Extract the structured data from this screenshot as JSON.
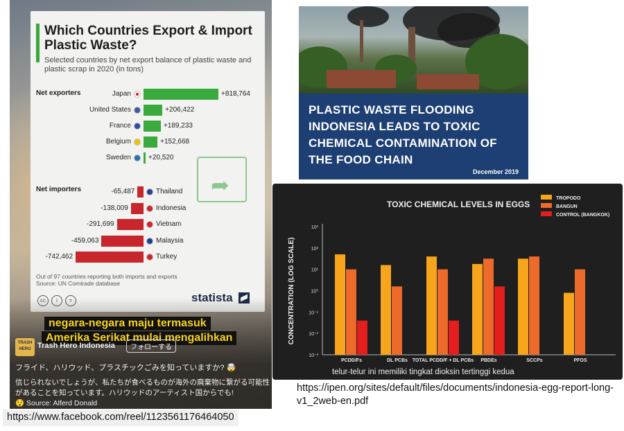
{
  "reel": {
    "card": {
      "title": "Which Countries Export & Import Plastic Waste?",
      "subtitle": "Selected countries by net export balance of plastic waste and plastic scrap in 2020 (in tons)",
      "exporters_label": "Net exporters",
      "importers_label": "Net importers",
      "note": "Out of 97 countries reporting both imports and exports",
      "source": "Source: UN Comtrade database",
      "brand": "statista"
    },
    "caption_line1": "negara-negara maju termasuk",
    "caption_line2": "Amerika Serikat mulai mengalihkan",
    "account": "Trash Hero Indonesia",
    "avatar_text": "TRASH HERO",
    "follow_label": "フォローする",
    "jp_line1": "フライド、ハリウッド、プラスチックごみを知っていますか? 🤯",
    "jp_line2": "信じられないでしょうが、私たちが食べるものが海外の廃棄物に繋がる可能性があることを知っています。ハリウッドのアーティスト国からでも!",
    "source_line": "😯 Source: Alferd Donald"
  },
  "fb_url": "https://www.facebook.com/reel/1123561176464050",
  "cover": {
    "title": "PLASTIC WASTE FLOODING INDONESIA LEADS TO TOXIC CHEMICAL CONTAMINATION OF THE FOOD CHAIN",
    "date": "December 2019"
  },
  "eggs_caption": "telur-telur ini memiliki tingkat dioksin tertinggi kedua",
  "ipen_url": "https://ipen.org/sites/default/files/documents/indonesia-egg-report-long-v1_2web-en.pdf",
  "chart_data": [
    {
      "type": "bar",
      "title": "Which Countries Export & Import Plastic Waste?",
      "subtitle": "Selected countries by net export balance of plastic waste and plastic scrap in 2020 (in tons)",
      "categories": [
        "Japan",
        "United States",
        "France",
        "Belgium",
        "Sweden",
        "Thailand",
        "Indonesia",
        "Vietnam",
        "Malaysia",
        "Turkey"
      ],
      "values": [
        818764,
        206422,
        189233,
        152668,
        20520,
        -65487,
        -138009,
        -291699,
        -459063,
        -742462
      ],
      "labels": [
        "+818,764",
        "+206,422",
        "+189,233",
        "+152,668",
        "+20,520",
        "-65,487",
        "-138,009",
        "-291,699",
        "-459,063",
        "-742,462"
      ],
      "groups": {
        "Net exporters": [
          "Japan",
          "United States",
          "France",
          "Belgium",
          "Sweden"
        ],
        "Net importers": [
          "Thailand",
          "Indonesia",
          "Vietnam",
          "Malaysia",
          "Turkey"
        ]
      },
      "colors": {
        "exporter": "#3aa93e",
        "importer": "#c7262c"
      }
    },
    {
      "type": "bar",
      "title": "TOXIC CHEMICAL LEVELS IN EGGS",
      "ylabel": "CONCENTRATION (LOG SCALE)",
      "yscale": "log",
      "yticks": [
        "10³",
        "10²",
        "10¹",
        "10⁰",
        "10⁻¹",
        "10⁻²",
        "10⁻³"
      ],
      "ylim_log10": [
        -3,
        3
      ],
      "categories": [
        "PCDD/Fs",
        "DL PCBs",
        "TOTAL PCDD/F + DL PCBs",
        "PBDEs",
        "SCCPs",
        "PFOS"
      ],
      "series": [
        {
          "name": "TROPODO",
          "color": "#f6a51c",
          "log10": [
            1.7,
            1.2,
            1.6,
            1.25,
            1.5,
            -0.1
          ]
        },
        {
          "name": "BANGUN",
          "color": "#ec6a2a",
          "log10": [
            1.0,
            0.2,
            1.0,
            1.5,
            1.6,
            1.0
          ]
        },
        {
          "name": "CONTROL (BANGKOK)",
          "color": "#e41d1d",
          "log10": [
            -1.4,
            null,
            -1.4,
            0.2,
            null,
            null
          ]
        }
      ],
      "legend_position": "top-right",
      "grid": false
    }
  ]
}
